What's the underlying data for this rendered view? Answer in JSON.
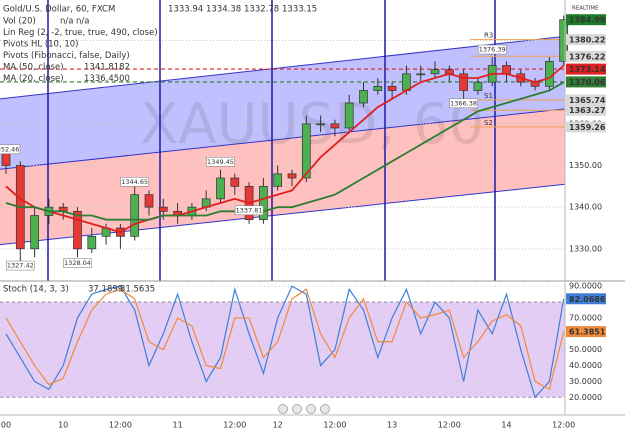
{
  "chart_data": [
    {
      "type": "candlestick",
      "title": "Gold/U.S. Dollar, 60, FXCM",
      "ohlc": [
        "1333.94",
        "1334.38",
        "1332.78",
        "1333.15"
      ],
      "indicators": [
        {
          "name": "Vol (20)",
          "values": [
            "n/a",
            "n/a"
          ]
        },
        {
          "name": "Lin Reg (2, -2, true, true, 490, close)"
        },
        {
          "name": "Pivots HL (10, 10)"
        },
        {
          "name": "Pivots (Fibonacci, false, Daily)"
        },
        {
          "name": "MA (50, close)",
          "values": [
            "1341.8182"
          ]
        },
        {
          "name": "MA (20, close)",
          "values": [
            "1336.4500"
          ]
        }
      ],
      "watermark": "XAUUSD, 60",
      "status": "REALTIME",
      "x": [
        "00",
        null,
        null,
        null,
        "10",
        null,
        null,
        null,
        "12:00",
        null,
        null,
        null,
        "11",
        null,
        null,
        null,
        "12:00",
        null,
        null,
        "12",
        null,
        null,
        null,
        "12:00",
        null,
        null,
        null,
        "13",
        null,
        null,
        null,
        "12:00",
        null,
        null,
        null,
        "14",
        null,
        null,
        null,
        "12:00"
      ],
      "open": [
        1353,
        1350,
        1330,
        1338,
        1340,
        1339,
        1330,
        1333,
        1335,
        1333,
        1343,
        1340,
        1339,
        1338,
        1340,
        1342,
        1347,
        1345,
        1337,
        1345,
        1348,
        1347,
        1360,
        1360,
        1359,
        1365,
        1368,
        1369,
        1368,
        1372,
        1372,
        1373,
        1372,
        1368,
        1370,
        1374,
        1372,
        1370,
        1369,
        1375
      ],
      "high": [
        1355,
        1351,
        1340,
        1342,
        1341,
        1340,
        1335,
        1336,
        1336,
        1345,
        1344,
        1342,
        1341,
        1341,
        1344,
        1349,
        1348,
        1346,
        1347,
        1350,
        1349,
        1362,
        1362,
        1361,
        1367,
        1370,
        1371,
        1370,
        1374,
        1374,
        1375,
        1374,
        1373,
        1371,
        1376,
        1375,
        1373,
        1371,
        1376,
        1386
      ],
      "low": [
        1348,
        1326,
        1328,
        1336,
        1337,
        1328,
        1329,
        1331,
        1330,
        1332,
        1338,
        1337,
        1336,
        1337,
        1339,
        1341,
        1343,
        1336,
        1336,
        1344,
        1345,
        1346,
        1358,
        1357,
        1358,
        1364,
        1367,
        1366,
        1367,
        1370,
        1371,
        1370,
        1366,
        1367,
        1369,
        1370,
        1369,
        1368,
        1368,
        1374
      ],
      "close": [
        1350,
        1330,
        1338,
        1340,
        1339,
        1330,
        1333,
        1335,
        1333,
        1343,
        1340,
        1339,
        1338,
        1340,
        1342,
        1347,
        1345,
        1337,
        1345,
        1348,
        1347,
        1360,
        1360,
        1359,
        1365,
        1368,
        1369,
        1368,
        1372,
        1372,
        1373,
        1372,
        1368,
        1370,
        1374,
        1372,
        1370,
        1369,
        1375,
        1384.99
      ],
      "up_color": "#4caf50",
      "down_color": "#e53935",
      "ma": [
        {
          "color": "#e02020",
          "values": [
            1345,
            1342,
            1340,
            1339,
            1338,
            1337,
            1336,
            1335,
            1334,
            1336,
            1337,
            1338,
            1338,
            1339,
            1340,
            1341,
            1342,
            1341,
            1342,
            1343,
            1344,
            1348,
            1352,
            1355,
            1358,
            1361,
            1364,
            1366,
            1368,
            1370,
            1371,
            1372,
            1371,
            1371,
            1372,
            1372,
            1371,
            1370,
            1371,
            1374
          ]
        },
        {
          "color": "#2e7d32",
          "values": [
            1341,
            1340,
            1340,
            1339,
            1339,
            1338,
            1338,
            1337,
            1337,
            1337,
            1337,
            1338,
            1338,
            1338,
            1338,
            1339,
            1339,
            1339,
            1339,
            1340,
            1340,
            1341,
            1342,
            1343,
            1345,
            1347,
            1349,
            1351,
            1353,
            1355,
            1357,
            1359,
            1361,
            1363,
            1364,
            1365,
            1366,
            1367,
            1368,
            1370
          ]
        }
      ],
      "regression": {
        "upper": [
          1366.0,
          1381.0
        ],
        "middle": [
          1349.1,
          1363.6
        ],
        "lower": [
          1331.0,
          1345.5
        ],
        "upper_fill": "#8c8cff",
        "lower_fill": "#ff8c8c",
        "line_color": "#3333cc"
      },
      "price_lines": [
        {
          "value": 1373.14,
          "color": "#e02020"
        },
        {
          "value": 1370.06,
          "color": "#2e7d32"
        }
      ],
      "pivots": [
        {
          "name": "R3",
          "value": 1380.22
        },
        {
          "name": "R2",
          "value": 1376.22
        },
        {
          "name": "S1",
          "value": 1365.74
        },
        {
          "name": null,
          "value": 1363.27
        },
        {
          "name": "S2",
          "value": 1359.26
        }
      ],
      "pivot_labels": [
        {
          "bar": 0,
          "value": 1352.46
        },
        {
          "bar": 1,
          "value": 1327.42
        },
        {
          "bar": 5,
          "value": 1328.04
        },
        {
          "bar": 9,
          "value": 1344.65
        },
        {
          "bar": 15,
          "value": 1349.45
        },
        {
          "bar": 17,
          "value": 1337.81
        },
        {
          "bar": 32,
          "value": 1366.38
        },
        {
          "bar": 34,
          "value": 1376.39
        }
      ],
      "ylim": [
        1323,
        1389
      ],
      "yticks": [
        {
          "value": 1330,
          "label": "1330.00"
        },
        {
          "value": 1340,
          "label": "1340.00"
        },
        {
          "value": 1350,
          "label": "1350.00"
        },
        {
          "value": 1360,
          "label": "1360.00"
        },
        {
          "value": 1370,
          "label": "1370.00"
        },
        {
          "value": 1380,
          "label": "1380.00"
        }
      ],
      "grid": true
    },
    {
      "type": "line",
      "title": "Stoch (14, 3, 3)",
      "legend_values": [
        "37.1899",
        "31.5635"
      ],
      "series": [
        {
          "color": "#3f7fd8",
          "values": [
            60,
            45,
            30,
            25,
            40,
            70,
            85,
            88,
            90,
            75,
            40,
            60,
            85,
            55,
            30,
            45,
            88,
            60,
            35,
            70,
            90,
            85,
            40,
            50,
            88,
            75,
            45,
            70,
            88,
            60,
            80,
            70,
            30,
            75,
            60,
            85,
            50,
            20,
            30,
            82.0686
          ]
        },
        {
          "color": "#f08a3c",
          "values": [
            70,
            55,
            40,
            28,
            32,
            55,
            75,
            85,
            88,
            82,
            55,
            50,
            70,
            65,
            40,
            38,
            70,
            70,
            45,
            55,
            82,
            88,
            60,
            45,
            70,
            82,
            55,
            55,
            80,
            70,
            72,
            75,
            45,
            55,
            68,
            72,
            65,
            30,
            25,
            61.3851
          ]
        }
      ],
      "band": [
        20,
        80
      ],
      "band_color": "#d8b8f0",
      "ylim": [
        12,
        92
      ],
      "yticks": [
        {
          "value": 20,
          "label": "20.0000"
        },
        {
          "value": 30,
          "label": "30.0000"
        },
        {
          "value": 40,
          "label": "40.0000"
        },
        {
          "value": 50,
          "label": "50.0000"
        },
        {
          "value": 70,
          "label": "70.0000"
        },
        {
          "value": 90,
          "label": "90.0000"
        }
      ]
    }
  ]
}
